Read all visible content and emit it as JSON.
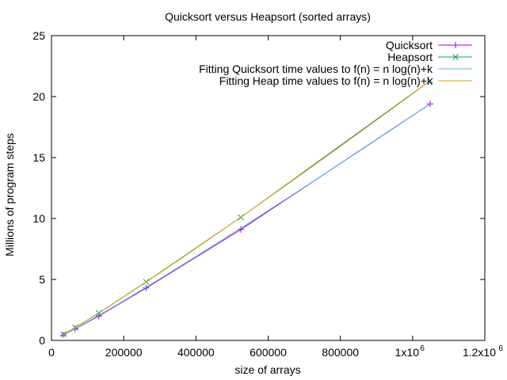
{
  "chart_data": {
    "type": "line",
    "title": "Quicksort versus Heapsort (sorted arrays)",
    "xlabel": "size of arrays",
    "ylabel": "Millions of program steps",
    "xlim": [
      0,
      1200000
    ],
    "ylim": [
      0,
      25
    ],
    "x_ticks": [
      0,
      200000,
      400000,
      600000,
      800000,
      1000000,
      1200000
    ],
    "x_tick_labels": [
      "0",
      "200000",
      "400000",
      "600000",
      "800000",
      "1x10",
      "1.2x10"
    ],
    "x_tick_exponent": "6",
    "y_ticks": [
      0,
      5,
      10,
      15,
      20,
      25
    ],
    "y_tick_labels": [
      "0",
      "5",
      "10",
      "15",
      "20",
      "25"
    ],
    "grid": false,
    "legend_position": "top-right",
    "series": [
      {
        "name": "Quicksort",
        "kind": "points",
        "marker": "plus",
        "color": "#9400d3",
        "x": [
          32768,
          65536,
          131072,
          262144,
          524288,
          1048576
        ],
        "y": [
          0.45,
          0.95,
          2.0,
          4.3,
          9.1,
          19.4
        ]
      },
      {
        "name": "Heapsort",
        "kind": "points",
        "marker": "cross",
        "color": "#009e73",
        "x": [
          32768,
          65536,
          131072,
          262144,
          524288,
          1048576
        ],
        "y": [
          0.5,
          1.05,
          2.25,
          4.8,
          10.1,
          21.3
        ]
      },
      {
        "name": "Fitting Quicksort time values to f(n) = n log(n)+k",
        "kind": "fit",
        "color": "#56b4e9",
        "coef": 9.25e-07,
        "k": 0.0
      },
      {
        "name": "Fitting Heap time values to f(n) = n log(n)+k",
        "kind": "fit",
        "color": "#e69f00",
        "coef": 1.015e-06,
        "k": 0.0
      }
    ]
  }
}
